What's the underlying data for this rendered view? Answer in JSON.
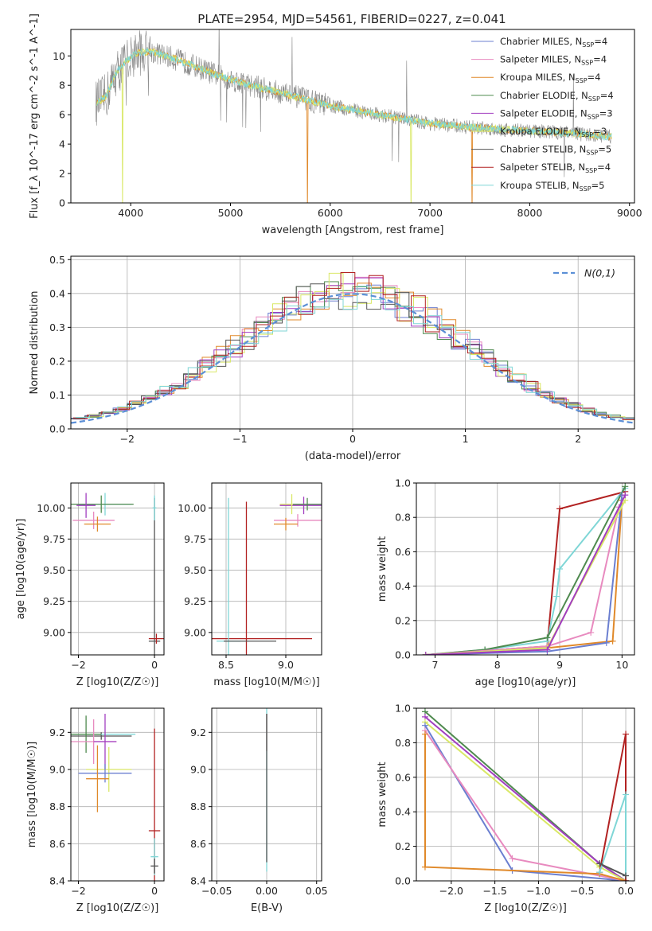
{
  "title": "PLATE=2954, MJD=54561, FIBERID=0227, z=0.041",
  "colors": {
    "chabrier_miles": "#6b7fd0",
    "salpeter_miles": "#e88abf",
    "kroupa_miles": "#e0892a",
    "chabrier_elodie": "#4f8a4f",
    "salpeter_elodie": "#a23ec0",
    "kroupa_elodie": "#d9e866",
    "chabrier_stelib": "#555555",
    "salpeter_stelib": "#b22222",
    "kroupa_stelib": "#7fd6d6",
    "data": "#888888",
    "gauss": "#5b8fd6"
  },
  "chart_data": [
    {
      "id": "spectrum",
      "type": "line",
      "title": "PLATE=2954, MJD=54561, FIBERID=0227, z=0.041",
      "xlabel": "wavelength [Angstrom, rest frame]",
      "ylabel": "Flux [f_λ 10^-17 erg cm^-2 s^-1 A^-1]",
      "xlim": [
        3400,
        9050
      ],
      "ylim": [
        0,
        11.8
      ],
      "xticks": [
        4000,
        5000,
        6000,
        7000,
        8000,
        9000
      ],
      "yticks": [
        0,
        2,
        4,
        6,
        8,
        10
      ],
      "continuum": {
        "x": [
          3650,
          3750,
          3850,
          3950,
          4050,
          4200,
          4400,
          4600,
          4900,
          5200,
          5500,
          6000,
          6500,
          7000,
          7500,
          8000,
          8500,
          8800
        ],
        "y": [
          6.8,
          7.2,
          8.8,
          9.6,
          10.2,
          10.3,
          9.9,
          9.4,
          8.6,
          8.0,
          7.5,
          6.6,
          6.0,
          5.4,
          5.1,
          4.9,
          4.7,
          4.5
        ]
      },
      "legend": [
        {
          "label": "Chabrier MILES, N",
          "sub": "SSP",
          "val": "=4",
          "color": "#6b7fd0"
        },
        {
          "label": "Salpeter MILES, N",
          "sub": "SSP",
          "val": "=4",
          "color": "#e88abf"
        },
        {
          "label": "Kroupa MILES, N",
          "sub": "SSP",
          "val": "=4",
          "color": "#e0892a"
        },
        {
          "label": "Chabrier ELODIE, N",
          "sub": "SSP",
          "val": "=4",
          "color": "#4f8a4f"
        },
        {
          "label": "Salpeter ELODIE, N",
          "sub": "SSP",
          "val": "=3",
          "color": "#a23ec0"
        },
        {
          "label": "Kroupa ELODIE, N",
          "sub": "SSP",
          "val": "=3",
          "color": "#d9e866"
        },
        {
          "label": "Chabrier STELIB, N",
          "sub": "SSP",
          "val": "=5",
          "color": "#555555"
        },
        {
          "label": "Salpeter STELIB, N",
          "sub": "SSP",
          "val": "=4",
          "color": "#b22222"
        },
        {
          "label": "Kroupa STELIB, N",
          "sub": "SSP",
          "val": "=5",
          "color": "#7fd6d6"
        }
      ]
    },
    {
      "id": "residuals",
      "type": "line",
      "xlabel": "(data-model)/error",
      "ylabel": "Normed distribution",
      "xlim": [
        -2.5,
        2.5
      ],
      "ylim": [
        0,
        0.51
      ],
      "xticks": [
        -2,
        -1,
        0,
        1,
        2
      ],
      "yticks": [
        0.0,
        0.1,
        0.2,
        0.3,
        0.4,
        0.5
      ],
      "legend": "N(0,1)"
    },
    {
      "id": "age_vs_Z",
      "type": "scatter",
      "xlabel": "Z [log10(Z/Z☉)]",
      "ylabel": "age  [log10(age/yr)]",
      "xlim": [
        -2.2,
        0.25
      ],
      "ylim": [
        8.82,
        10.2
      ],
      "xticks": [
        -2,
        0
      ],
      "yticks": [
        9.0,
        9.25,
        9.5,
        9.75,
        10.0
      ],
      "points": [
        {
          "s": "kroupa_stelib",
          "x": -1.3,
          "y": 10.03,
          "xerr": 0.7,
          "yerr": 0.09
        },
        {
          "s": "chabrier_elodie",
          "x": -1.4,
          "y": 10.03,
          "xerr": 0.85,
          "yerr": 0.07
        },
        {
          "s": "salpeter_miles",
          "x": -1.6,
          "y": 9.9,
          "xerr": 0.55,
          "yerr": 0.07
        },
        {
          "s": "kroupa_miles",
          "x": -1.5,
          "y": 9.87,
          "xerr": 0.35,
          "yerr": 0.06
        },
        {
          "s": "salpeter_elodie",
          "x": -1.8,
          "y": 10.02,
          "xerr": 0.25,
          "yerr": 0.1
        },
        {
          "s": "chabrier_stelib",
          "x": 0.0,
          "y": 8.93,
          "xerr": 0.15,
          "yerr": 1.15
        },
        {
          "s": "salpeter_stelib",
          "x": 0.05,
          "y": 8.95,
          "xerr": 0.2,
          "yerr": 0.04
        },
        {
          "s": "kroupa_stelib",
          "x": 0.0,
          "y": 10.0,
          "xerr": 0.05,
          "yerr": 0.1
        }
      ]
    },
    {
      "id": "age_vs_mass",
      "type": "scatter",
      "xlabel": "mass [log10(M/M☉)]",
      "ylabel": "",
      "xlim": [
        8.38,
        9.3
      ],
      "ylim": [
        8.82,
        10.2
      ],
      "xticks": [
        8.5,
        9.0
      ],
      "yticks": [
        9.0,
        9.25,
        9.5,
        9.75,
        10.0
      ],
      "points": [
        {
          "s": "salpeter_stelib",
          "x": 8.67,
          "y": 8.95,
          "xerr": 0.55,
          "yerr": 1.1
        },
        {
          "s": "kroupa_stelib",
          "x": 8.52,
          "y": 8.93,
          "xerr": 0.1,
          "yerr": 1.15
        },
        {
          "s": "chabrier_stelib",
          "x": 8.7,
          "y": 8.93,
          "xerr": 0.22,
          "yerr": 0.0
        },
        {
          "s": "salpeter_elodie",
          "x": 9.15,
          "y": 10.02,
          "xerr": 0.2,
          "yerr": 0.07
        },
        {
          "s": "salpeter_miles",
          "x": 9.1,
          "y": 9.9,
          "xerr": 0.2,
          "yerr": 0.05
        },
        {
          "s": "kroupa_miles",
          "x": 9.0,
          "y": 9.87,
          "xerr": 0.1,
          "yerr": 0.05
        },
        {
          "s": "kroupa_elodie",
          "x": 9.05,
          "y": 10.03,
          "xerr": 0.1,
          "yerr": 0.08
        },
        {
          "s": "chabrier_elodie",
          "x": 9.18,
          "y": 10.03,
          "xerr": 0.12,
          "yerr": 0.05
        }
      ]
    },
    {
      "id": "weight_vs_age",
      "type": "line",
      "xlabel": "age  [log10(age/yr)]",
      "ylabel": "mass weight",
      "xlim": [
        6.7,
        10.2
      ],
      "ylim": [
        0,
        1.0
      ],
      "xticks": [
        7,
        8,
        9,
        10
      ],
      "yticks": [
        0.0,
        0.2,
        0.4,
        0.6,
        0.8,
        1.0
      ],
      "series": [
        {
          "s": "salpeter_stelib",
          "x": [
            6.85,
            8.8,
            9.0,
            10.05
          ],
          "y": [
            0.0,
            0.05,
            0.85,
            0.95
          ]
        },
        {
          "s": "kroupa_stelib",
          "x": [
            6.85,
            7.8,
            8.8,
            8.95,
            9.0,
            10.05
          ],
          "y": [
            0.0,
            0.03,
            0.08,
            0.34,
            0.5,
            0.97
          ]
        },
        {
          "s": "chabrier_elodie",
          "x": [
            6.85,
            7.8,
            8.8,
            10.05
          ],
          "y": [
            0.0,
            0.03,
            0.1,
            0.98
          ]
        },
        {
          "s": "salpeter_miles",
          "x": [
            6.85,
            8.8,
            9.5,
            9.95
          ],
          "y": [
            0.0,
            0.05,
            0.13,
            0.86
          ]
        },
        {
          "s": "kroupa_miles",
          "x": [
            6.85,
            8.8,
            9.85,
            10.0
          ],
          "y": [
            0.0,
            0.04,
            0.08,
            0.9
          ]
        },
        {
          "s": "chabrier_miles",
          "x": [
            6.85,
            8.8,
            9.75,
            10.0
          ],
          "y": [
            0.0,
            0.02,
            0.07,
            0.93
          ]
        },
        {
          "s": "kroupa_elodie",
          "x": [
            6.85,
            8.8,
            10.05
          ],
          "y": [
            0.0,
            0.04,
            0.9
          ]
        },
        {
          "s": "salpeter_elodie",
          "x": [
            6.85,
            8.8,
            10.05
          ],
          "y": [
            0.0,
            0.03,
            0.93
          ]
        }
      ]
    },
    {
      "id": "mass_vs_Z",
      "type": "scatter",
      "xlabel": "Z [log10(Z/Z☉)]",
      "ylabel": "mass [log10(M/M☉)]",
      "xlim": [
        -2.2,
        0.25
      ],
      "ylim": [
        8.4,
        9.33
      ],
      "xticks": [
        -2,
        0
      ],
      "yticks": [
        8.4,
        8.6,
        8.8,
        9.0,
        9.2
      ],
      "points": [
        {
          "s": "chabrier_stelib",
          "x": -1.4,
          "y": 9.18,
          "xerr": 0.8,
          "yerr": 0.02
        },
        {
          "s": "kroupa_stelib",
          "x": -1.35,
          "y": 9.19,
          "xerr": 0.85,
          "yerr": 0.0
        },
        {
          "s": "chabrier_elodie",
          "x": -1.8,
          "y": 9.19,
          "xerr": 0.4,
          "yerr": 0.1
        },
        {
          "s": "salpeter_miles",
          "x": -1.6,
          "y": 9.15,
          "xerr": 0.6,
          "yerr": 0.12
        },
        {
          "s": "salpeter_elodie",
          "x": -1.3,
          "y": 9.15,
          "xerr": 0.3,
          "yerr": 0.15
        },
        {
          "s": "kroupa_elodie",
          "x": -1.2,
          "y": 9.0,
          "xerr": 0.6,
          "yerr": 0.12
        },
        {
          "s": "chabrier_miles",
          "x": -1.3,
          "y": 8.98,
          "xerr": 0.7,
          "yerr": 0.05
        },
        {
          "s": "kroupa_miles",
          "x": -1.5,
          "y": 8.95,
          "xerr": 0.3,
          "yerr": 0.18
        },
        {
          "s": "salpeter_stelib",
          "x": 0.0,
          "y": 8.67,
          "xerr": 0.15,
          "yerr": 0.55
        },
        {
          "s": "kroupa_stelib",
          "x": 0.0,
          "y": 8.53,
          "xerr": 0.1,
          "yerr": 0.1
        },
        {
          "s": "chabrier_stelib",
          "x": 0.0,
          "y": 8.48,
          "xerr": 0.1,
          "yerr": 0.04
        }
      ]
    },
    {
      "id": "mass_vs_ebv",
      "type": "scatter",
      "xlabel": "E(B-V)",
      "ylabel": "",
      "xlim": [
        -0.055,
        0.055
      ],
      "ylim": [
        8.4,
        9.33
      ],
      "xticks": [
        -0.05,
        0.0,
        0.05
      ],
      "yticks": [
        8.4,
        8.6,
        8.8,
        9.0,
        9.2
      ],
      "points": [
        {
          "s": "salpeter_stelib",
          "x": 0.0,
          "y": 9.2,
          "xerr": 0.0,
          "yerr": 0.1
        },
        {
          "s": "kroupa_stelib",
          "x": 0.0,
          "y": 8.9,
          "xerr": 0.0,
          "yerr": 0.45
        },
        {
          "s": "chabrier_stelib",
          "x": 0.0,
          "y": 8.9,
          "xerr": 0.0,
          "yerr": 0.4
        }
      ]
    },
    {
      "id": "weight_vs_Z",
      "type": "line",
      "xlabel": "Z [log10(Z/Z☉)]",
      "ylabel": "mass weight",
      "xlim": [
        -2.4,
        0.1
      ],
      "ylim": [
        0,
        1.0
      ],
      "xticks": [
        -2.0,
        -1.5,
        -1.0,
        -0.5,
        0.0
      ],
      "yticks": [
        0.0,
        0.2,
        0.4,
        0.6,
        0.8,
        1.0
      ],
      "series": [
        {
          "s": "chabrier_elodie",
          "x": [
            -2.3,
            -0.3,
            0.0
          ],
          "y": [
            0.98,
            0.1,
            0.0
          ]
        },
        {
          "s": "salpeter_elodie",
          "x": [
            -2.3,
            -0.3,
            0.0
          ],
          "y": [
            0.95,
            0.1,
            0.0
          ]
        },
        {
          "s": "kroupa_elodie",
          "x": [
            -2.3,
            -0.3,
            0.0
          ],
          "y": [
            0.92,
            0.08,
            0.0
          ]
        },
        {
          "s": "chabrier_miles",
          "x": [
            -2.3,
            -1.3,
            0.0
          ],
          "y": [
            0.9,
            0.06,
            0.0
          ]
        },
        {
          "s": "salpeter_miles",
          "x": [
            -2.3,
            -1.3,
            0.0
          ],
          "y": [
            0.87,
            0.13,
            0.0
          ]
        },
        {
          "s": "kroupa_miles",
          "x": [
            -2.3,
            -2.3,
            -0.3,
            0.0
          ],
          "y": [
            0.85,
            0.08,
            0.04,
            0.0
          ]
        },
        {
          "s": "salpeter_stelib",
          "x": [
            -0.3,
            0.0,
            0.0
          ],
          "y": [
            0.05,
            0.85,
            0.0
          ]
        },
        {
          "s": "kroupa_stelib",
          "x": [
            -0.3,
            0.0,
            0.0
          ],
          "y": [
            0.05,
            0.5,
            0.03
          ]
        },
        {
          "s": "chabrier_stelib",
          "x": [
            -0.3,
            0.0
          ],
          "y": [
            0.1,
            0.03
          ]
        }
      ]
    }
  ]
}
